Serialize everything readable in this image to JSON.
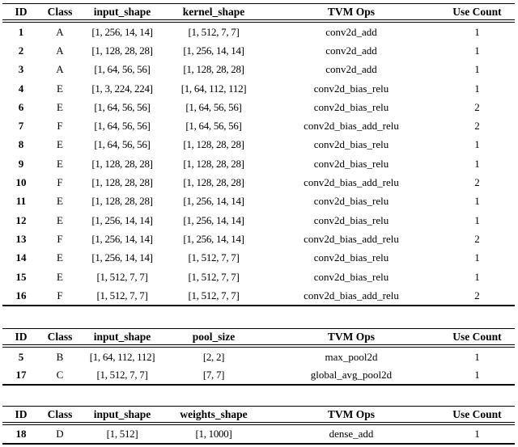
{
  "page": {
    "background": "#ffffff",
    "text_color": "#000000",
    "rule_color": "#000000"
  },
  "tables": [
    {
      "name": "conv-ops-table",
      "columns": [
        "ID",
        "Class",
        "input_shape",
        "kernel_shape",
        "TVM Ops",
        "Use Count"
      ],
      "rows": [
        [
          "1",
          "A",
          "[1, 256, 14, 14]",
          "[1, 512, 7, 7]",
          "conv2d_add",
          "1"
        ],
        [
          "2",
          "A",
          "[1, 128, 28, 28]",
          "[1, 256, 14, 14]",
          "conv2d_add",
          "1"
        ],
        [
          "3",
          "A",
          "[1, 64, 56, 56]",
          "[1, 128, 28, 28]",
          "conv2d_add",
          "1"
        ],
        [
          "4",
          "E",
          "[1, 3, 224, 224]",
          "[1, 64, 112, 112]",
          "conv2d_bias_relu",
          "1"
        ],
        [
          "6",
          "E",
          "[1, 64, 56, 56]",
          "[1, 64, 56, 56]",
          "conv2d_bias_relu",
          "2"
        ],
        [
          "7",
          "F",
          "[1, 64, 56, 56]",
          "[1, 64, 56, 56]",
          "conv2d_bias_add_relu",
          "2"
        ],
        [
          "8",
          "E",
          "[1, 64, 56, 56]",
          "[1, 128, 28, 28]",
          "conv2d_bias_relu",
          "1"
        ],
        [
          "9",
          "E",
          "[1, 128, 28, 28]",
          "[1, 128, 28, 28]",
          "conv2d_bias_relu",
          "1"
        ],
        [
          "10",
          "F",
          "[1, 128, 28, 28]",
          "[1, 128, 28, 28]",
          "conv2d_bias_add_relu",
          "2"
        ],
        [
          "11",
          "E",
          "[1, 128, 28, 28]",
          "[1, 256, 14, 14]",
          "conv2d_bias_relu",
          "1"
        ],
        [
          "12",
          "E",
          "[1, 256, 14, 14]",
          "[1, 256, 14, 14]",
          "conv2d_bias_relu",
          "1"
        ],
        [
          "13",
          "F",
          "[1, 256, 14, 14]",
          "[1, 256, 14, 14]",
          "conv2d_bias_add_relu",
          "2"
        ],
        [
          "14",
          "E",
          "[1, 256, 14, 14]",
          "[1, 512, 7, 7]",
          "conv2d_bias_relu",
          "1"
        ],
        [
          "15",
          "E",
          "[1, 512, 7, 7]",
          "[1, 512, 7, 7]",
          "conv2d_bias_relu",
          "1"
        ],
        [
          "16",
          "F",
          "[1, 512, 7, 7]",
          "[1, 512, 7, 7]",
          "conv2d_bias_add_relu",
          "2"
        ]
      ]
    },
    {
      "name": "pool-ops-table",
      "columns": [
        "ID",
        "Class",
        "input_shape",
        "pool_size",
        "TVM Ops",
        "Use Count"
      ],
      "rows": [
        [
          "5",
          "B",
          "[1, 64, 112, 112]",
          "[2, 2]",
          "max_pool2d",
          "1"
        ],
        [
          "17",
          "C",
          "[1, 512, 7, 7]",
          "[7, 7]",
          "global_avg_pool2d",
          "1"
        ]
      ]
    },
    {
      "name": "dense-ops-table",
      "columns": [
        "ID",
        "Class",
        "input_shape",
        "weights_shape",
        "TVM Ops",
        "Use Count"
      ],
      "rows": [
        [
          "18",
          "D",
          "[1, 512]",
          "[1, 1000]",
          "dense_add",
          "1"
        ]
      ]
    }
  ]
}
